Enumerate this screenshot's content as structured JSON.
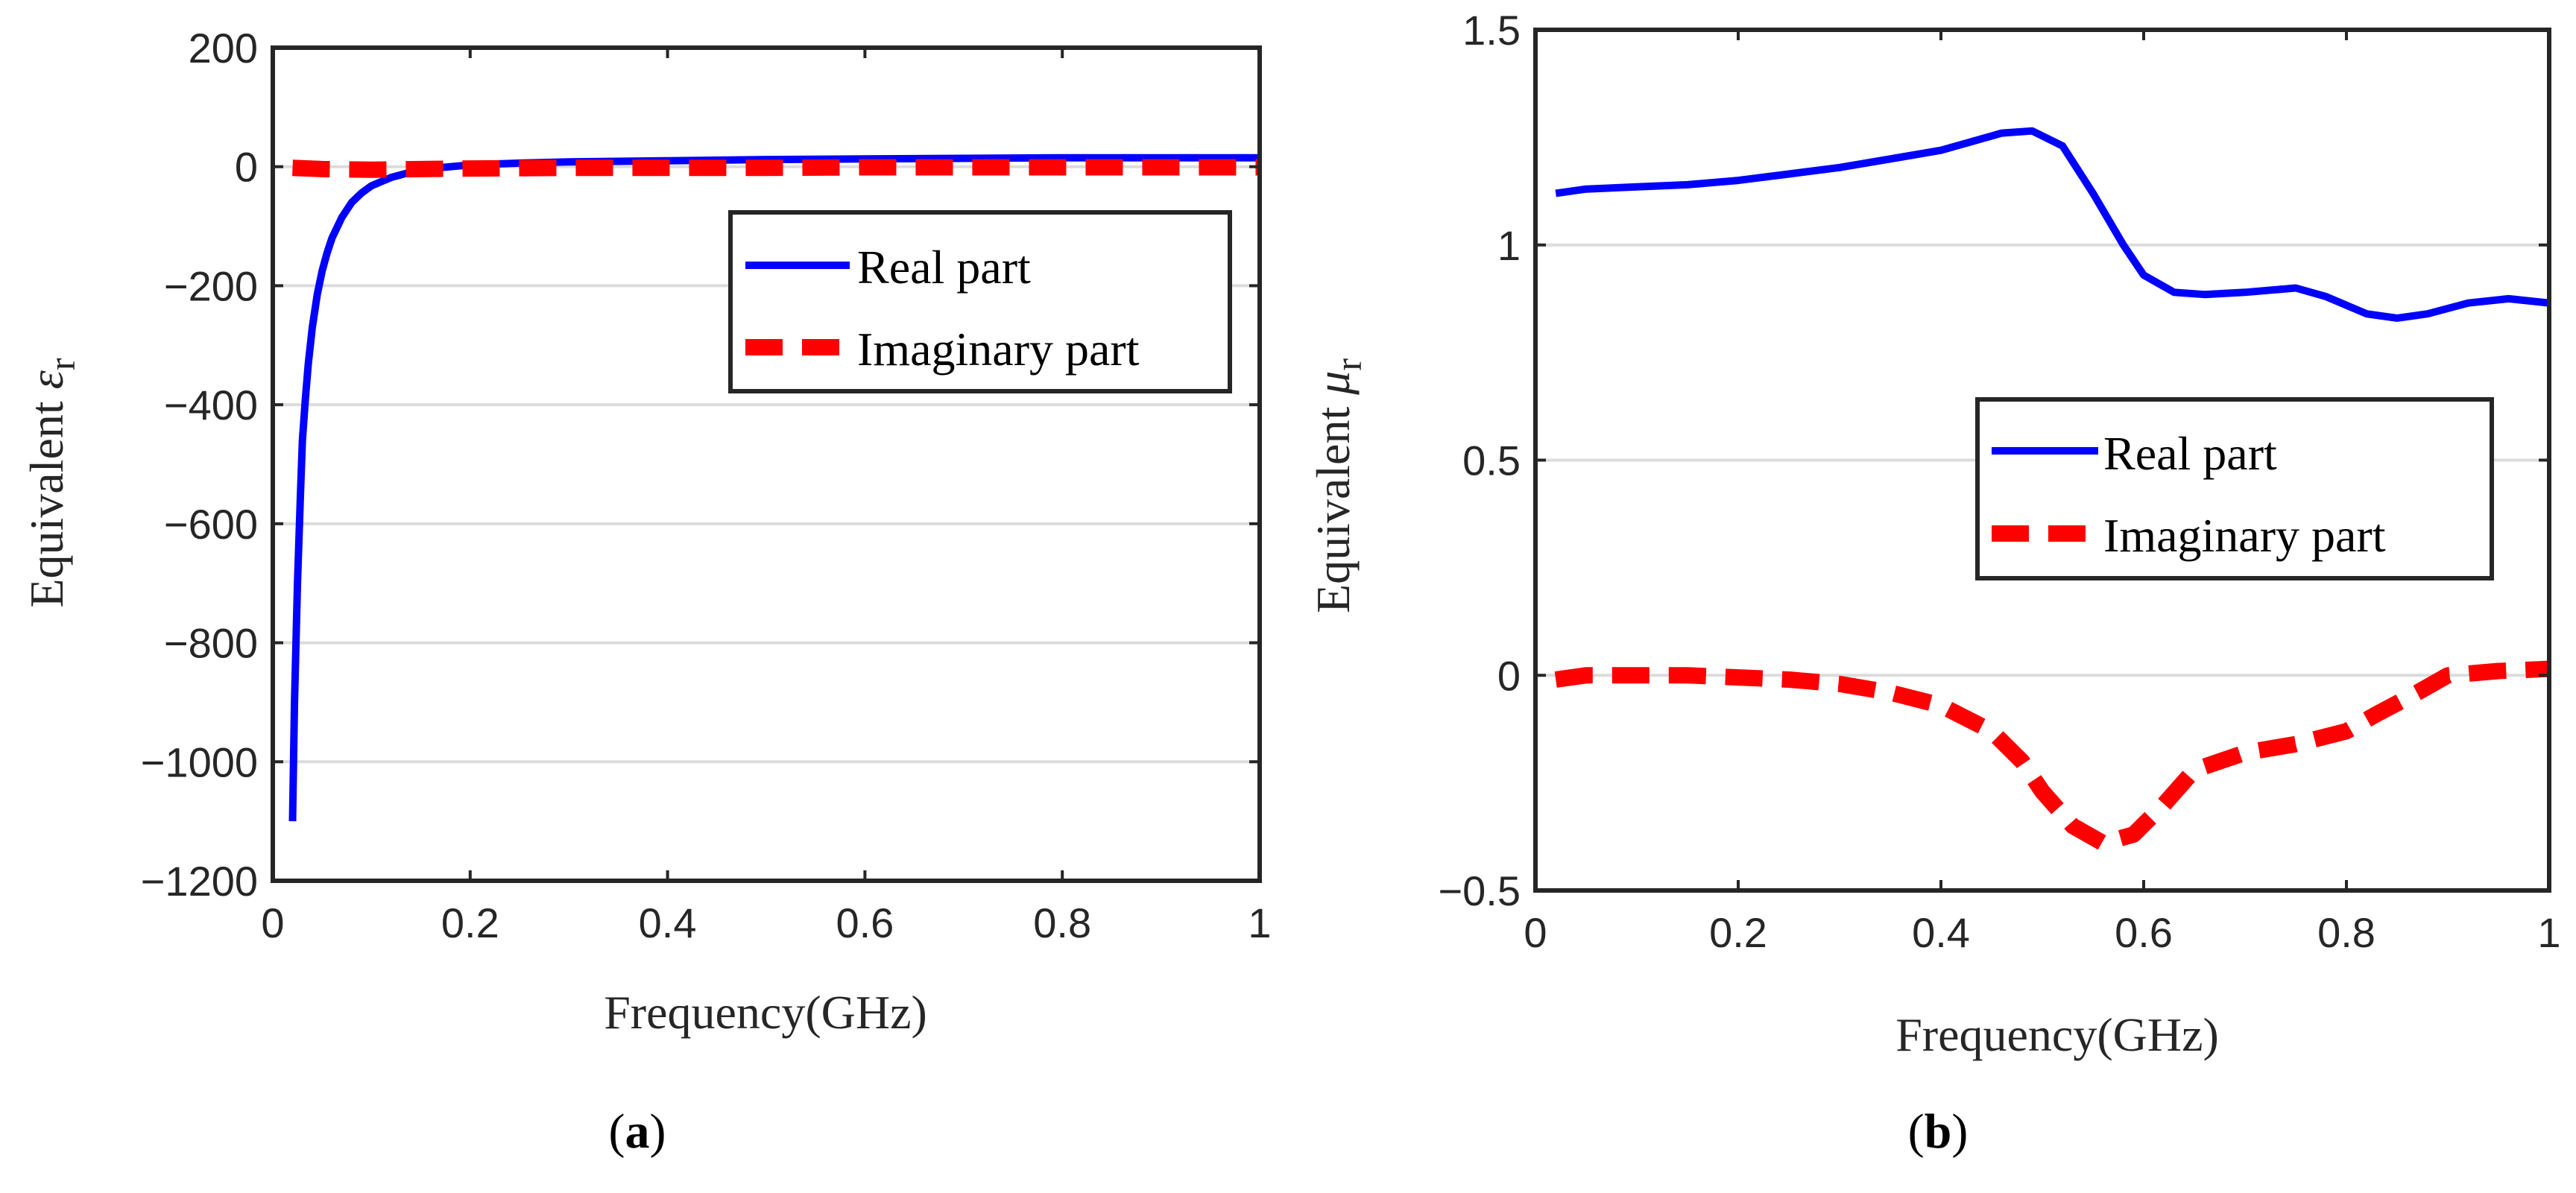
{
  "colors": {
    "real": "#0000ff",
    "imag": "#ff0000",
    "grid": "#dcdcdc",
    "axis": "#262626"
  },
  "chart_data": [
    {
      "type": "line",
      "panel_label": "a",
      "xlabel": "Frequency(GHz)",
      "ylabel_main": "Equivalent ",
      "ylabel_symbol": "ε",
      "ylabel_sub": "r",
      "xlim": [
        0,
        1
      ],
      "ylim": [
        -1200,
        200
      ],
      "xticks": [
        0,
        0.2,
        0.4,
        0.6,
        0.8,
        1
      ],
      "xtick_labels": [
        "0",
        "0.2",
        "0.4",
        "0.6",
        "0.8",
        "1"
      ],
      "yticks": [
        200,
        0,
        -200,
        -400,
        -600,
        -800,
        -1000,
        -1200
      ],
      "ytick_labels": [
        "200",
        "0",
        "−200",
        "−400",
        "−600",
        "−800",
        "−1000",
        "−1200"
      ],
      "grid": "horizontal",
      "legend": {
        "position": "upper-right",
        "entries": [
          "Real part",
          "Imaginary part"
        ]
      },
      "series": [
        {
          "name": "Real part",
          "style": "solid",
          "x": [
            0.02,
            0.022,
            0.025,
            0.028,
            0.03,
            0.033,
            0.036,
            0.04,
            0.045,
            0.05,
            0.055,
            0.06,
            0.07,
            0.08,
            0.09,
            0.1,
            0.12,
            0.14,
            0.16,
            0.2,
            0.25,
            0.3,
            0.4,
            0.5,
            0.6,
            0.7,
            0.8,
            0.9,
            1.0
          ],
          "y": [
            -1100,
            -900,
            -700,
            -550,
            -460,
            -390,
            -330,
            -270,
            -215,
            -175,
            -145,
            -120,
            -85,
            -60,
            -44,
            -32,
            -18,
            -9,
            -3,
            3,
            6,
            8,
            10,
            12,
            13,
            14,
            15,
            15,
            15
          ]
        },
        {
          "name": "Imaginary part",
          "style": "dashed",
          "x": [
            0.02,
            0.05,
            0.1,
            0.15,
            0.2,
            0.3,
            0.4,
            0.5,
            0.6,
            0.7,
            0.8,
            0.9,
            1.0
          ],
          "y": [
            -2,
            -4,
            -5,
            -4,
            -3,
            -2,
            -2,
            -2,
            -1,
            -1,
            -1,
            -1,
            -1
          ]
        }
      ]
    },
    {
      "type": "line",
      "panel_label": "b",
      "xlabel": "Frequency(GHz)",
      "ylabel_main": "Equivalent ",
      "ylabel_symbol": "μ",
      "ylabel_sub": "r",
      "xlim": [
        0,
        1
      ],
      "ylim": [
        -0.5,
        1.5
      ],
      "xticks": [
        0,
        0.2,
        0.4,
        0.6,
        0.8,
        1
      ],
      "xtick_labels": [
        "0",
        "0.2",
        "0.4",
        "0.6",
        "0.8",
        "1"
      ],
      "yticks": [
        1.5,
        1,
        0.5,
        0,
        -0.5
      ],
      "ytick_labels": [
        "1.5",
        "1",
        "0.5",
        "0",
        "−0.5"
      ],
      "grid": "horizontal",
      "legend": {
        "position": "middle-right",
        "entries": [
          "Real part",
          "Imaginary part"
        ]
      },
      "series": [
        {
          "name": "Real part",
          "style": "solid",
          "x": [
            0.02,
            0.05,
            0.1,
            0.15,
            0.2,
            0.25,
            0.3,
            0.35,
            0.4,
            0.43,
            0.46,
            0.49,
            0.52,
            0.55,
            0.58,
            0.6,
            0.63,
            0.66,
            0.7,
            0.75,
            0.78,
            0.82,
            0.85,
            0.88,
            0.92,
            0.96,
            1.0
          ],
          "y": [
            1.12,
            1.13,
            1.135,
            1.14,
            1.15,
            1.165,
            1.18,
            1.2,
            1.22,
            1.24,
            1.26,
            1.265,
            1.23,
            1.12,
            1.0,
            0.93,
            0.89,
            0.885,
            0.89,
            0.9,
            0.88,
            0.84,
            0.83,
            0.84,
            0.865,
            0.875,
            0.865
          ]
        },
        {
          "name": "Imaginary part",
          "style": "dashed",
          "x": [
            0.02,
            0.05,
            0.1,
            0.15,
            0.2,
            0.25,
            0.3,
            0.35,
            0.4,
            0.45,
            0.48,
            0.5,
            0.53,
            0.56,
            0.59,
            0.62,
            0.65,
            0.7,
            0.75,
            0.8,
            0.83,
            0.87,
            0.9,
            0.95,
            1.0
          ],
          "y": [
            -0.01,
            0.0,
            0.0,
            0.0,
            -0.005,
            -0.01,
            -0.02,
            -0.04,
            -0.07,
            -0.13,
            -0.2,
            -0.27,
            -0.35,
            -0.39,
            -0.37,
            -0.3,
            -0.22,
            -0.18,
            -0.16,
            -0.13,
            -0.09,
            -0.04,
            0.0,
            0.01,
            0.015
          ]
        }
      ]
    }
  ]
}
